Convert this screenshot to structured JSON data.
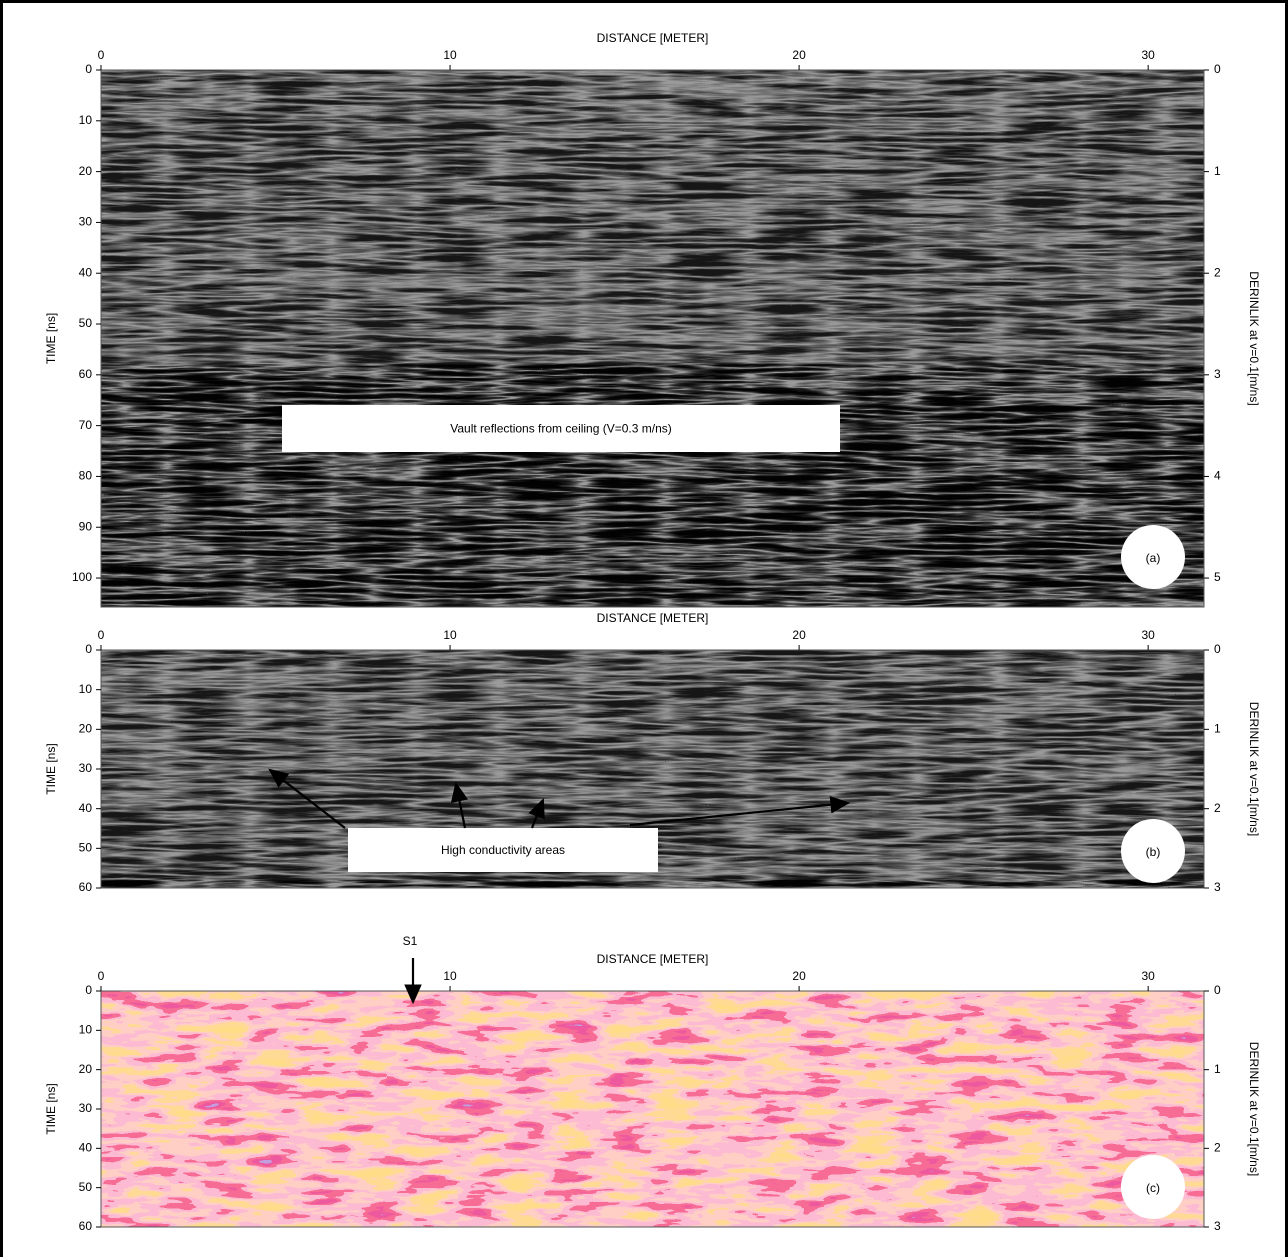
{
  "chart_data": [
    {
      "type": "radargram",
      "colormap": "gray",
      "xlabel": "DISTANCE [METER]",
      "ylabel": "TIME [ns]",
      "y2label": "DERINLIK at v=0.1[m/ns]",
      "xlim": [
        0,
        31.6
      ],
      "xticks": [
        0,
        10,
        20,
        30
      ],
      "ylim": [
        0,
        105.7
      ],
      "yticks": [
        0,
        10,
        20,
        30,
        40,
        50,
        60,
        70,
        80,
        90,
        100
      ],
      "y2lim": [
        0,
        5.285
      ],
      "y2ticks": [
        0,
        1,
        2,
        3,
        4,
        5
      ],
      "annotation": "Vault reflections from ceiling (V=0.3 m/ns)",
      "panel_label": "(a)"
    },
    {
      "type": "radargram",
      "colormap": "gray",
      "xlabel": "DISTANCE [METER]",
      "ylabel": "TIME [ns]",
      "y2label": "DERINLIK at v=0.1[m/ns]",
      "xlim": [
        0,
        31.6
      ],
      "xticks": [
        0,
        10,
        20,
        30
      ],
      "ylim": [
        0,
        60
      ],
      "yticks": [
        0,
        10,
        20,
        30,
        40,
        50,
        60
      ],
      "y2lim": [
        0,
        3
      ],
      "y2ticks": [
        0,
        1,
        2,
        3
      ],
      "annotation": "High conductivity areas",
      "panel_label": "(b)"
    },
    {
      "type": "radargram",
      "colormap": "color",
      "xlabel": "DISTANCE [METER]",
      "ylabel": "TIME [ns]",
      "y2label": "DERINLIK at v=0.1[m/ns]",
      "xlim": [
        0,
        31.6
      ],
      "xticks": [
        0,
        10,
        20,
        30
      ],
      "ylim": [
        0,
        60
      ],
      "yticks": [
        0,
        10,
        20,
        30,
        40,
        50,
        60
      ],
      "y2lim": [
        0,
        3
      ],
      "y2ticks": [
        0,
        1,
        2,
        3
      ],
      "annotation": "S1",
      "panel_label": "(c)"
    }
  ]
}
